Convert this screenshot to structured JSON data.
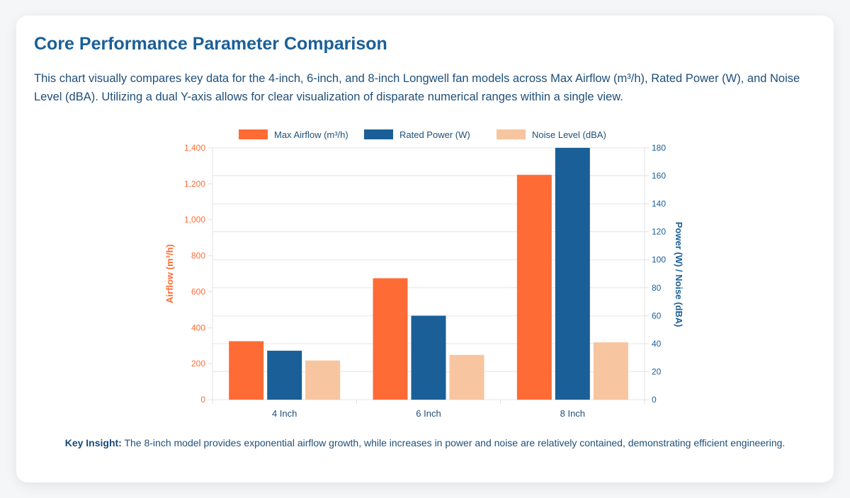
{
  "card": {
    "title": "Core Performance Parameter Comparison",
    "description": "This chart visually compares key data for the 4-inch, 6-inch, and 8-inch Longwell fan models across Max Airflow (m³/h), Rated Power (W), and Noise Level (dBA). Utilizing a dual Y-axis allows for clear visualization of disparate numerical ranges within a single view.",
    "insight_label": "Key Insight:",
    "insight_text": " The 8-inch model provides exponential airflow growth, while increases in power and noise are relatively contained, demonstrating efficient engineering."
  },
  "chart_data": {
    "type": "bar",
    "categories": [
      "4 Inch",
      "6 Inch",
      "8 Inch"
    ],
    "series": [
      {
        "name": "Max Airflow (m³/h)",
        "axis": "left",
        "color": "#ff6b35",
        "values": [
          325,
          675,
          1250
        ]
      },
      {
        "name": "Rated Power (W)",
        "axis": "right",
        "color": "#1a5f97",
        "values": [
          35,
          60,
          180
        ]
      },
      {
        "name": "Noise Level (dBA)",
        "axis": "right",
        "color": "#f7c59f",
        "values": [
          28,
          32,
          41
        ]
      }
    ],
    "y_left": {
      "label": "Airflow (m³/h)",
      "min": 0,
      "max": 1400,
      "ticks": [
        "0",
        "200",
        "400",
        "600",
        "800",
        "1,000",
        "1,200",
        "1,400"
      ],
      "color": "#ff6b35"
    },
    "y_right": {
      "label": "Power (W) / Noise (dBA)",
      "min": 0,
      "max": 180,
      "ticks": [
        "0",
        "20",
        "40",
        "60",
        "80",
        "100",
        "120",
        "140",
        "160",
        "180"
      ],
      "color": "#1a5f97"
    },
    "legend_position": "top-center",
    "grid": true
  }
}
